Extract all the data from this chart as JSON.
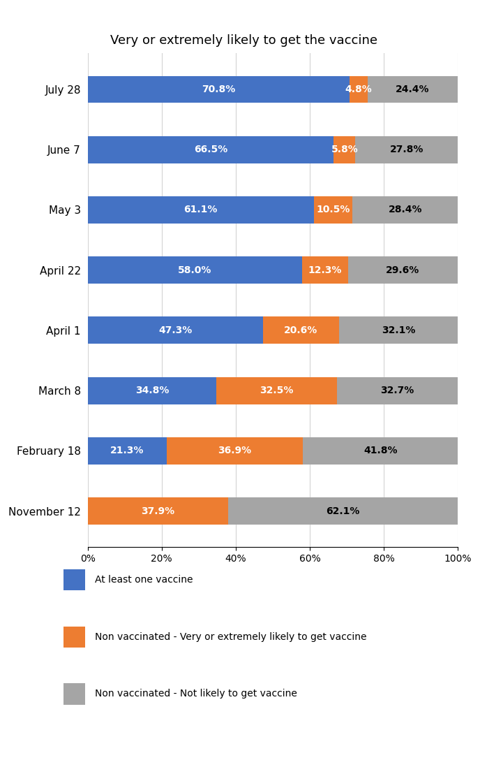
{
  "title": "Very or extremely likely to get the vaccine",
  "categories": [
    "November 12",
    "February 18",
    "March 8",
    "April 1",
    "April 22",
    "May 3",
    "June 7",
    "July 28"
  ],
  "vaccinated": [
    0.0,
    21.3,
    34.8,
    47.3,
    58.0,
    61.1,
    66.5,
    70.8
  ],
  "non_vacc_likely": [
    37.9,
    36.9,
    32.5,
    20.6,
    12.3,
    10.5,
    5.8,
    4.8
  ],
  "non_vacc_not_likely": [
    62.1,
    41.8,
    32.7,
    32.1,
    29.6,
    28.4,
    27.8,
    24.4
  ],
  "vaccinated_labels": [
    "",
    "21.3%",
    "34.8%",
    "47.3%",
    "58.0%",
    "61.1%",
    "66.5%",
    "70.8%"
  ],
  "non_vacc_likely_labels": [
    "37.9%",
    "36.9%",
    "32.5%",
    "20.6%",
    "12.3%",
    "10.5%",
    "5.8%",
    "4.8%"
  ],
  "non_vacc_not_likely_labels": [
    "62.1%",
    "41.8%",
    "32.7%",
    "32.1%",
    "29.6%",
    "28.4%",
    "27.8%",
    "24.4%"
  ],
  "color_vaccinated": "#4472C4",
  "color_non_vacc_likely": "#ED7D31",
  "color_non_vacc_not_likely": "#A5A5A5",
  "legend_labels": [
    "At least one vaccine",
    "Non vaccinated - Very or extremely likely to get vaccine",
    "Non vaccinated - Not likely to get vaccine"
  ],
  "xlim": [
    0,
    100
  ],
  "xticks": [
    0,
    20,
    40,
    60,
    80,
    100
  ],
  "xtick_labels": [
    "0%",
    "20%",
    "40%",
    "60%",
    "80%",
    "100%"
  ],
  "background_color": "#FFFFFF",
  "title_fontsize": 13,
  "label_fontsize": 10,
  "tick_fontsize": 10,
  "bar_height": 0.45
}
